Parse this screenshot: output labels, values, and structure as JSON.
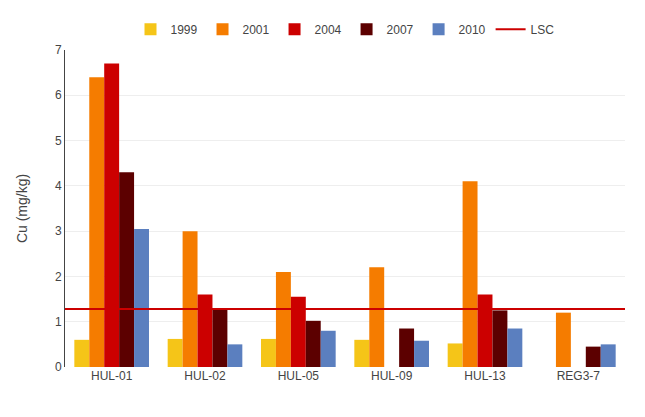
{
  "chart_data": {
    "type": "bar",
    "ylabel": "Cu (mg/kg)",
    "categories": [
      "HUL-01",
      "HUL-02",
      "HUL-05",
      "HUL-09",
      "HUL-13",
      "REG3-7"
    ],
    "series": [
      {
        "name": "1999",
        "color": "#F5C518",
        "values": [
          0.6,
          0.62,
          0.62,
          0.6,
          0.52,
          null
        ]
      },
      {
        "name": "2001",
        "color": "#F57C00",
        "values": [
          6.4,
          3.0,
          2.1,
          2.2,
          4.1,
          1.2
        ]
      },
      {
        "name": "2004",
        "color": "#CC0000",
        "values": [
          6.7,
          1.6,
          1.55,
          null,
          1.6,
          null
        ]
      },
      {
        "name": "2007",
        "color": "#5C0000",
        "values": [
          4.3,
          1.3,
          1.02,
          0.85,
          1.25,
          0.45
        ]
      },
      {
        "name": "2010",
        "color": "#5B7FBF",
        "values": [
          3.05,
          0.5,
          0.8,
          0.58,
          0.85,
          0.5
        ]
      }
    ],
    "reference_lines": [
      {
        "name": "LSC",
        "value": 1.28,
        "color": "#CC0000"
      }
    ],
    "ylim": [
      0,
      7
    ],
    "yticks": [
      0,
      1,
      2,
      3,
      4,
      5,
      6,
      7
    ],
    "grid": true,
    "legend": "top"
  }
}
